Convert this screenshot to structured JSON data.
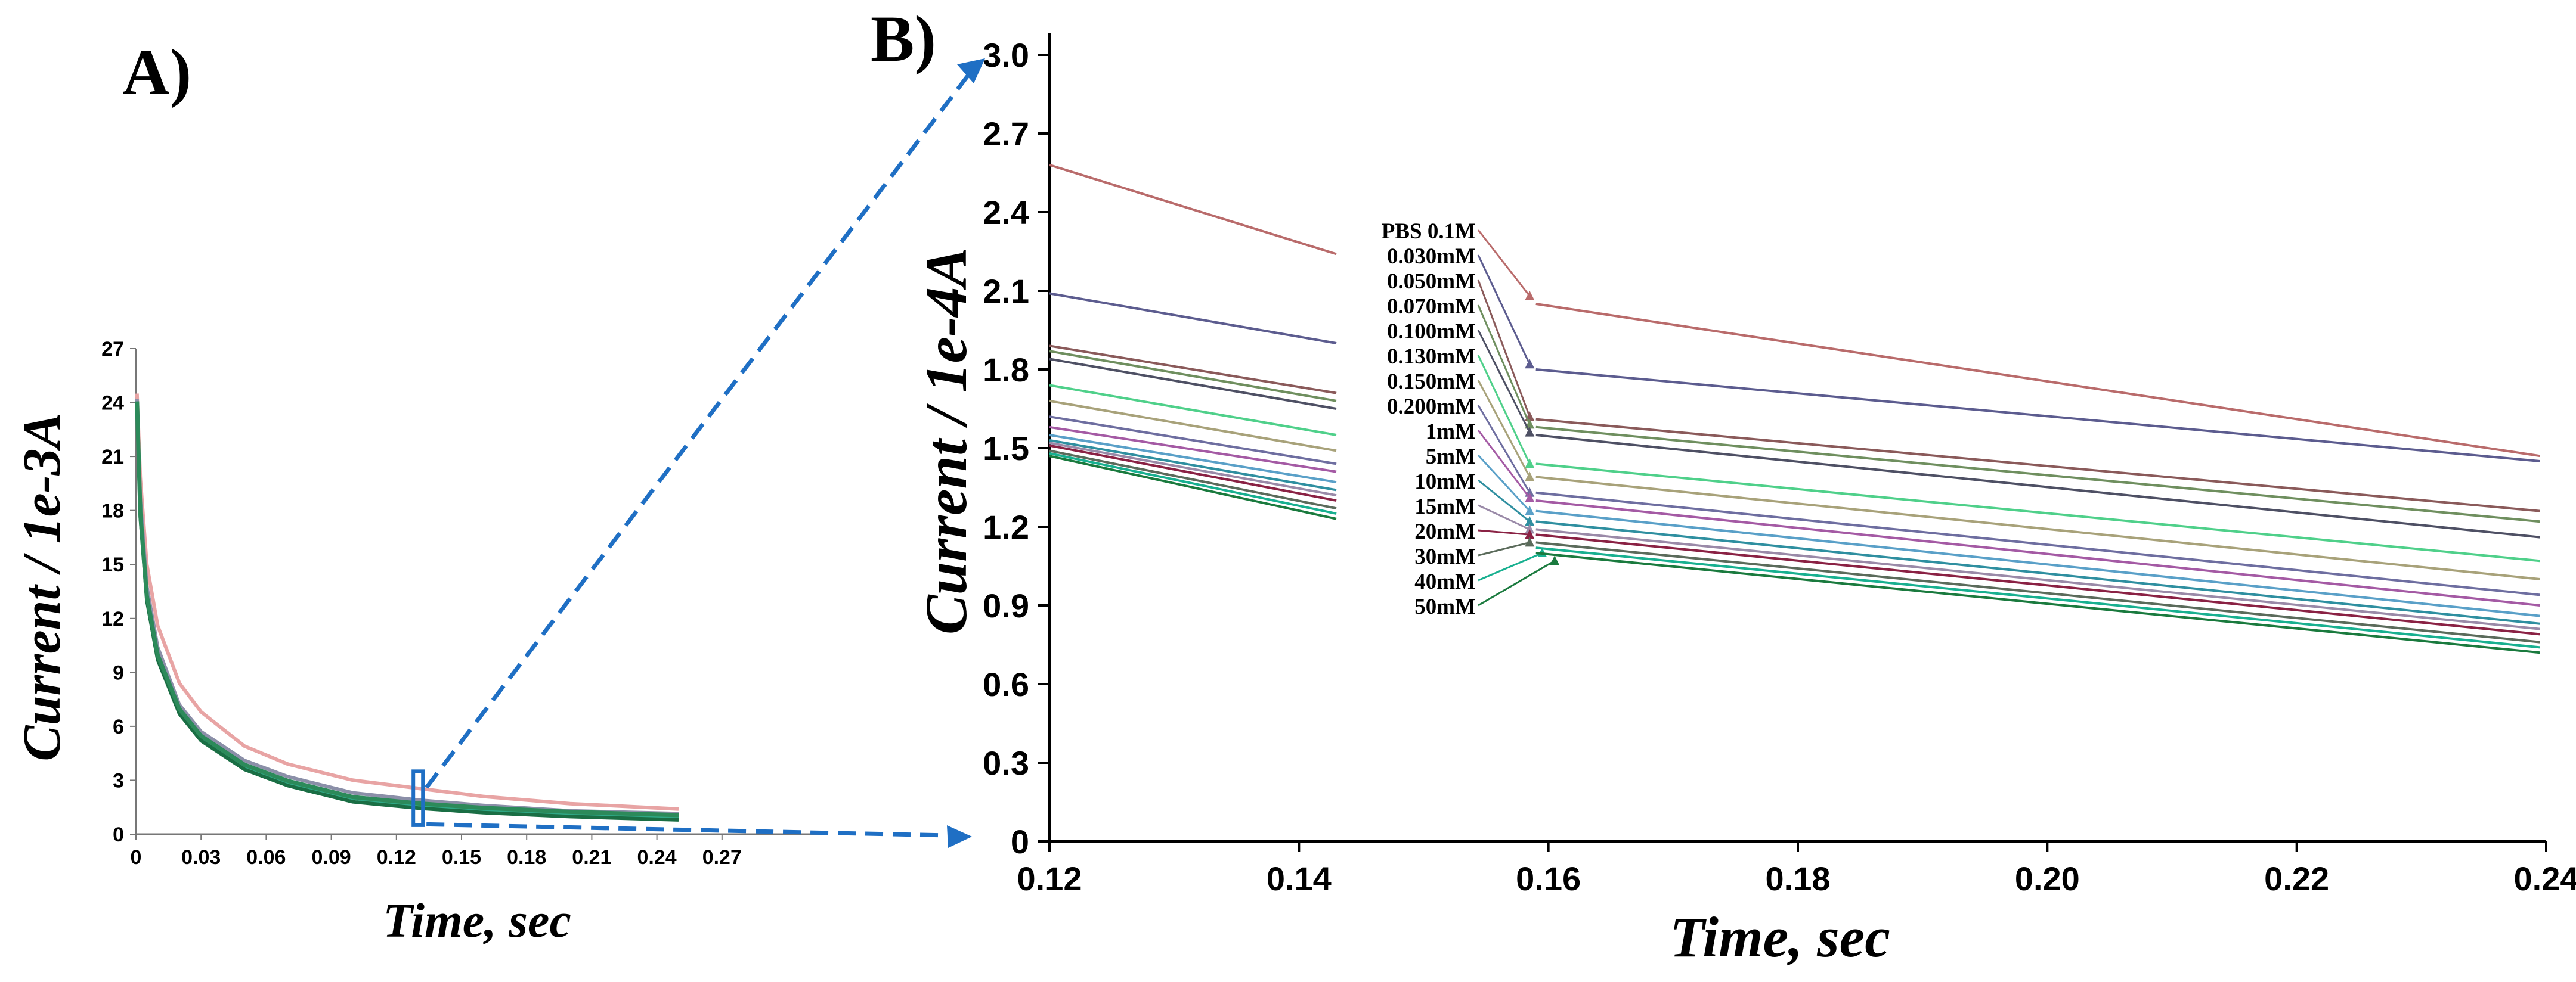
{
  "panel_labels": {
    "a": "A)",
    "b": "B)"
  },
  "chart_data": [
    {
      "id": "A",
      "type": "line",
      "title": "",
      "xlabel": "Time, sec",
      "ylabel": "Current / 1e-3A",
      "xlim": [
        0,
        0.3
      ],
      "ylim": [
        0,
        27
      ],
      "x_ticks": [
        "0",
        "0.03",
        "0.06",
        "0.09",
        "0.12",
        "0.15",
        "0.18",
        "0.21",
        "0.24",
        "0.27"
      ],
      "x_tick_values": [
        0,
        0.03,
        0.06,
        0.09,
        0.12,
        0.15,
        0.18,
        0.21,
        0.24,
        0.27
      ],
      "y_ticks": [
        "0",
        "3",
        "6",
        "9",
        "12",
        "15",
        "18",
        "21",
        "24",
        "27"
      ],
      "y_tick_values": [
        0,
        3,
        6,
        9,
        12,
        15,
        18,
        21,
        24,
        27
      ],
      "zoom_marker_x": 0.13,
      "x_end": 0.25,
      "curve_x": [
        0.0005,
        0.002,
        0.005,
        0.01,
        0.02,
        0.03,
        0.05,
        0.07,
        0.1,
        0.13,
        0.16,
        0.2,
        0.25
      ],
      "series": [
        {
          "name": "PBS 0.1M",
          "color": "#e8a4a4",
          "values": [
            24.5,
            19.8,
            15.0,
            11.6,
            8.4,
            6.8,
            4.9,
            3.9,
            3.0,
            2.55,
            2.1,
            1.7,
            1.4
          ]
        },
        {
          "name": "0.050mM",
          "color": "#8b8fa8",
          "values": [
            24.2,
            18.6,
            13.8,
            10.4,
            7.2,
            5.7,
            4.1,
            3.2,
            2.3,
            1.9,
            1.6,
            1.3,
            1.15
          ]
        },
        {
          "name": "5mM",
          "color": "#2fa886",
          "values": [
            24.0,
            18.0,
            13.3,
            10.0,
            6.9,
            5.4,
            3.8,
            2.9,
            2.0,
            1.6,
            1.35,
            1.1,
            0.95
          ]
        },
        {
          "name": "50mM",
          "color": "#1a6e44",
          "values": [
            23.8,
            17.6,
            13.0,
            9.7,
            6.7,
            5.2,
            3.6,
            2.7,
            1.8,
            1.45,
            1.2,
            0.98,
            0.8
          ]
        }
      ]
    },
    {
      "id": "B",
      "type": "line",
      "title": "",
      "xlabel": "Time,  sec",
      "ylabel": "Current / 1e-4A",
      "xlim": [
        0.12,
        0.24
      ],
      "ylim": [
        0,
        3.0
      ],
      "x_ticks": [
        "0.12",
        "0.14",
        "0.16",
        "0.18",
        "0.20",
        "0.22",
        "0.24"
      ],
      "x_tick_values": [
        0.12,
        0.14,
        0.16,
        0.18,
        0.2,
        0.22,
        0.24
      ],
      "y_ticks": [
        "0",
        "0.3",
        "0.6",
        "0.9",
        "1.2",
        "1.5",
        "1.8",
        "2.1",
        "2.4",
        "2.7",
        "3.0"
      ],
      "y_tick_values": [
        0,
        0.3,
        0.6,
        0.9,
        1.2,
        1.5,
        1.8,
        2.1,
        2.4,
        2.7,
        3.0
      ],
      "gap_x": [
        0.143,
        0.159
      ],
      "series": [
        {
          "name": "PBS 0.1M",
          "color": "#b96b6b",
          "x": [
            0.12,
            0.143,
            0.159,
            0.2395
          ],
          "values": [
            2.58,
            2.24,
            2.05,
            1.47
          ],
          "marker_x": 0.1585,
          "marker_y": 2.08
        },
        {
          "name": "0.030mM",
          "color": "#5c5c8f",
          "x": [
            0.12,
            0.143,
            0.159,
            0.2395
          ],
          "values": [
            2.09,
            1.9,
            1.8,
            1.45
          ],
          "marker_x": 0.1585,
          "marker_y": 1.82
        },
        {
          "name": "0.050mM",
          "color": "#8a5a5a",
          "x": [
            0.12,
            0.143,
            0.159,
            0.2395
          ],
          "values": [
            1.89,
            1.71,
            1.61,
            1.26
          ],
          "marker_x": 0.1585,
          "marker_y": 1.62
        },
        {
          "name": "0.070mM",
          "color": "#6f8f5f",
          "x": [
            0.12,
            0.143,
            0.159,
            0.2395
          ],
          "values": [
            1.87,
            1.68,
            1.58,
            1.22
          ],
          "marker_x": 0.1585,
          "marker_y": 1.59
        },
        {
          "name": "0.100mM",
          "color": "#4e5064",
          "x": [
            0.12,
            0.143,
            0.159,
            0.2395
          ],
          "values": [
            1.84,
            1.65,
            1.55,
            1.16
          ],
          "marker_x": 0.1585,
          "marker_y": 1.56
        },
        {
          "name": "0.130mM",
          "color": "#4fd08a",
          "x": [
            0.12,
            0.143,
            0.159,
            0.2395
          ],
          "values": [
            1.74,
            1.55,
            1.44,
            1.07
          ],
          "marker_x": 0.1585,
          "marker_y": 1.44
        },
        {
          "name": "0.150mM",
          "color": "#a8a27a",
          "x": [
            0.12,
            0.143,
            0.159,
            0.2395
          ],
          "values": [
            1.68,
            1.49,
            1.39,
            1.0
          ],
          "marker_x": 0.1585,
          "marker_y": 1.39
        },
        {
          "name": "0.200mM",
          "color": "#6e6ea0",
          "x": [
            0.12,
            0.143,
            0.159,
            0.2395
          ],
          "values": [
            1.62,
            1.44,
            1.33,
            0.94
          ],
          "marker_x": 0.1585,
          "marker_y": 1.33
        },
        {
          "name": "1mM",
          "color": "#a45aa4",
          "x": [
            0.12,
            0.143,
            0.159,
            0.2395
          ],
          "values": [
            1.58,
            1.41,
            1.3,
            0.9
          ],
          "marker_x": 0.1585,
          "marker_y": 1.31
        },
        {
          "name": "5mM",
          "color": "#5aa0c8",
          "x": [
            0.12,
            0.143,
            0.159,
            0.2395
          ],
          "values": [
            1.55,
            1.37,
            1.26,
            0.86
          ],
          "marker_x": 0.1585,
          "marker_y": 1.26
        },
        {
          "name": "10mM",
          "color": "#2f8fa0",
          "x": [
            0.12,
            0.143,
            0.159,
            0.2395
          ],
          "values": [
            1.53,
            1.34,
            1.22,
            0.83
          ],
          "marker_x": 0.1585,
          "marker_y": 1.22
        },
        {
          "name": "15mM",
          "color": "#9a8aa8",
          "x": [
            0.12,
            0.143,
            0.159,
            0.2395
          ],
          "values": [
            1.52,
            1.32,
            1.19,
            0.81
          ],
          "marker_x": 0.1585,
          "marker_y": 1.19
        },
        {
          "name": "20mM",
          "color": "#8a2244",
          "x": [
            0.12,
            0.143,
            0.159,
            0.2395
          ],
          "values": [
            1.51,
            1.3,
            1.17,
            0.79
          ],
          "marker_x": 0.1585,
          "marker_y": 1.17
        },
        {
          "name": "30mM",
          "color": "#5b6b5b",
          "x": [
            0.12,
            0.143,
            0.159,
            0.2395
          ],
          "values": [
            1.49,
            1.27,
            1.14,
            0.76
          ],
          "marker_x": 0.1585,
          "marker_y": 1.14
        },
        {
          "name": "40mM",
          "color": "#18b090",
          "x": [
            0.12,
            0.143,
            0.159,
            0.2395
          ],
          "values": [
            1.48,
            1.25,
            1.12,
            0.74
          ],
          "marker_x": 0.1595,
          "marker_y": 1.1
        },
        {
          "name": "50mM",
          "color": "#1a7a3e",
          "x": [
            0.12,
            0.143,
            0.159,
            0.2395
          ],
          "values": [
            1.47,
            1.23,
            1.1,
            0.72
          ],
          "marker_x": 0.1605,
          "marker_y": 1.07
        }
      ]
    }
  ]
}
